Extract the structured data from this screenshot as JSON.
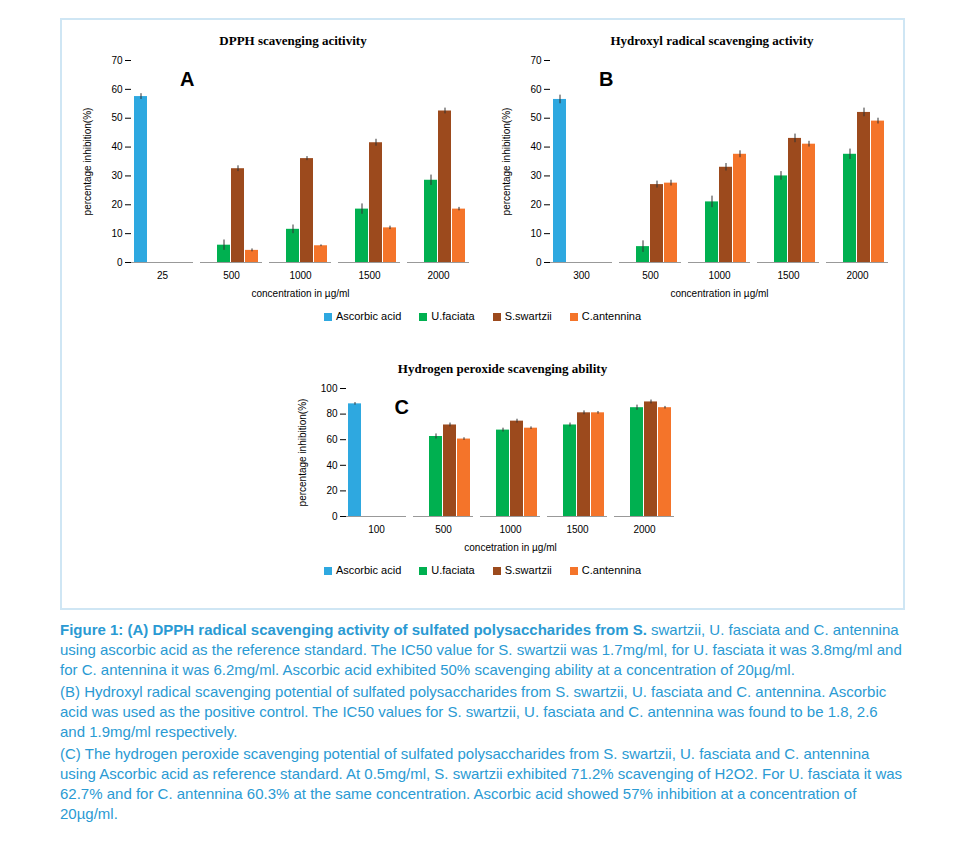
{
  "chart_data": [
    {
      "type": "bar",
      "title": "DPPH scavenging acitivity",
      "annotation": "A",
      "x_label": "concentration in µg/ml",
      "y_label": "percentage inhibition(%)",
      "categories": [
        "25",
        "500",
        "1000",
        "1500",
        "2000"
      ],
      "series": [
        {
          "name": "Ascorbic acid",
          "color": "#2ea8e0",
          "values": [
            57.5,
            null,
            null,
            null,
            null
          ],
          "errors": [
            1,
            null,
            null,
            null,
            null
          ]
        },
        {
          "name": "U.faciata",
          "color": "#00b050",
          "values": [
            null,
            6,
            11.5,
            18.5,
            28.5
          ],
          "errors": [
            null,
            1.8,
            1.5,
            1.8,
            1.8
          ]
        },
        {
          "name": "S.swartzii",
          "color": "#9c4a1d",
          "values": [
            null,
            32.5,
            36,
            41.5,
            52.5
          ],
          "errors": [
            null,
            1,
            0.7,
            1.2,
            1
          ]
        },
        {
          "name": "C.antennina",
          "color": "#f4742a",
          "values": [
            null,
            4.2,
            5.8,
            12,
            18.5
          ],
          "errors": [
            null,
            0.5,
            0.3,
            0.6,
            0.6
          ]
        }
      ],
      "ylim": [
        0,
        70
      ],
      "yticks": [
        0,
        10,
        20,
        30,
        40,
        50,
        60,
        70
      ],
      "grid": false,
      "legend": "bottom"
    },
    {
      "type": "bar",
      "title": "Hydroxyl radical scavenging activity",
      "annotation": "B",
      "x_label": "concentration in µg/ml",
      "y_label": "percentage inhibition(%)",
      "categories": [
        "300",
        "500",
        "1000",
        "1500",
        "2000"
      ],
      "series": [
        {
          "name": "Ascorbic acid",
          "color": "#2ea8e0",
          "values": [
            56.5,
            null,
            null,
            null,
            null
          ],
          "errors": [
            1.5,
            null,
            null,
            null,
            null
          ]
        },
        {
          "name": "U.faciata",
          "color": "#00b050",
          "values": [
            null,
            5.5,
            21,
            30,
            37.5
          ],
          "errors": [
            null,
            2,
            2,
            1.5,
            1.8
          ]
        },
        {
          "name": "S.swartzii",
          "color": "#9c4a1d",
          "values": [
            null,
            27,
            33,
            43,
            52
          ],
          "errors": [
            null,
            1.2,
            1.3,
            1.5,
            1.5
          ]
        },
        {
          "name": "C.antennina",
          "color": "#f4742a",
          "values": [
            null,
            27.5,
            37.5,
            41,
            49
          ],
          "errors": [
            null,
            1,
            1.2,
            1,
            1
          ]
        }
      ],
      "ylim": [
        0,
        70
      ],
      "yticks": [
        0,
        10,
        20,
        30,
        40,
        50,
        60,
        70
      ],
      "grid": false
    },
    {
      "type": "bar",
      "title": "Hydrogen peroxide scavenging ability",
      "annotation": "C",
      "x_label": "concetration in µg/ml",
      "y_label": "percentage inhibition(%)",
      "categories": [
        "100",
        "500",
        "1000",
        "1500",
        "2000"
      ],
      "series": [
        {
          "name": "Ascorbic acid",
          "color": "#2ea8e0",
          "values": [
            88,
            null,
            null,
            null,
            null
          ],
          "errors": [
            1,
            null,
            null,
            null,
            null
          ]
        },
        {
          "name": "U.faciata",
          "color": "#00b050",
          "values": [
            null,
            62.5,
            67.5,
            71.5,
            85
          ],
          "errors": [
            null,
            2,
            1.5,
            1.5,
            2
          ]
        },
        {
          "name": "S.swartzii",
          "color": "#9c4a1d",
          "values": [
            null,
            71.5,
            74.5,
            81,
            89.5
          ],
          "errors": [
            null,
            1.5,
            1.5,
            1.5,
            1.5
          ]
        },
        {
          "name": "C.antennina",
          "color": "#f4742a",
          "values": [
            null,
            60.5,
            69,
            81,
            85
          ],
          "errors": [
            null,
            1,
            1,
            1,
            1
          ]
        }
      ],
      "ylim": [
        0,
        100
      ],
      "yticks": [
        0,
        20,
        40,
        60,
        80,
        100
      ],
      "grid": false,
      "legend": "bottom"
    }
  ],
  "caption": [
    [
      {
        "strong": "Figure 1: (A) DPPH radical scavenging activity of sulfated polysaccharides from S."
      },
      {
        "text": " swartzii, U. fasciata and C. antennina using ascorbic acid as the reference standard. The IC50 value for S. swartzii was 1.7mg/ml, for U. fasciata it was 3.8mg/ml and for C. antennina it was 6.2mg/ml. Ascorbic acid exhibited 50% scavenging ability at a concentration of 20µg/ml."
      }
    ],
    [
      {
        "text": "(B) Hydroxyl radical scavenging potential of sulfated polysaccharides from S. swartzii, U. fasciata and C. antennina. Ascorbic acid was used as the positive control. The IC50 values for S. swartzii, U. fasciata and C. antennina was found to be 1.8, 2.6 and 1.9mg/ml respectively."
      }
    ],
    [
      {
        "text": "(C) The hydrogen peroxide scavenging potential of sulfated polysaccharides from S. swartzii, U. fasciata and C. antennina using Ascorbic acid as reference standard. At 0.5mg/ml, S. swartzii exhibited 71.2% scavenging of H2O2. For U. fasciata it was 62.7% and for C. antennina 60.3% at the same concentration. Ascorbic acid showed 57% inhibition at a concentration of 20µg/ml."
      }
    ]
  ]
}
